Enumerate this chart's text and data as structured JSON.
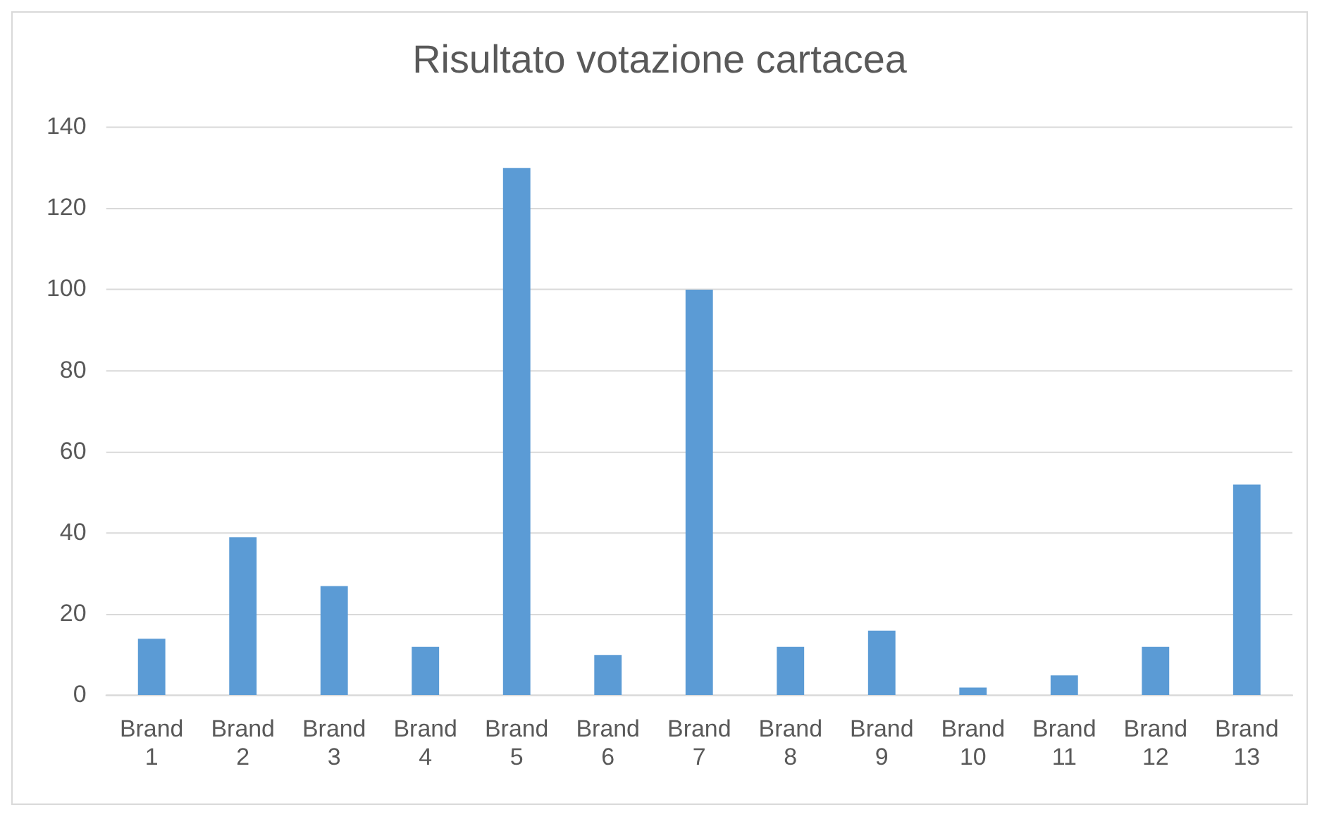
{
  "chart_data": {
    "type": "bar",
    "title": "Risultato votazione cartacea",
    "categories": [
      "Brand 1",
      "Brand 2",
      "Brand 3",
      "Brand 4",
      "Brand 5",
      "Brand 6",
      "Brand 7",
      "Brand 8",
      "Brand 9",
      "Brand 10",
      "Brand 11",
      "Brand 12",
      "Brand 13"
    ],
    "values": [
      14,
      39,
      27,
      12,
      130,
      10,
      100,
      12,
      16,
      2,
      5,
      12,
      52
    ],
    "color": "#5b9bd5",
    "ylim": [
      0,
      140
    ],
    "yticks": [
      0,
      20,
      40,
      60,
      80,
      100,
      120,
      140
    ],
    "grid": "y",
    "legend": false
  }
}
